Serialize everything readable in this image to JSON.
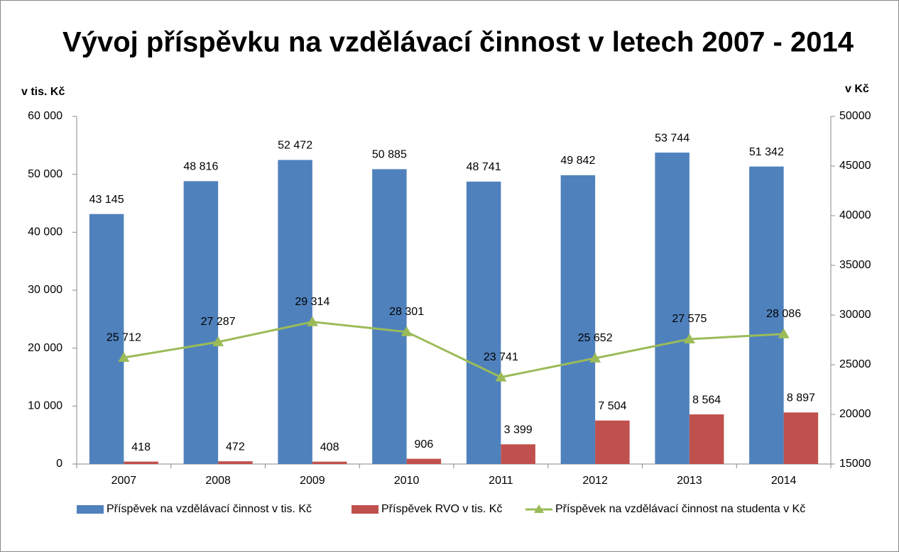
{
  "chart_data": {
    "type": "bar",
    "title": "Vývoj příspěvku na vzdělávací činnost v letech 2007 - 2014",
    "y_label": "v tis. Kč",
    "y2_label": "v Kč",
    "categories": [
      "2007",
      "2008",
      "2009",
      "2010",
      "2011",
      "2012",
      "2013",
      "2014"
    ],
    "series": [
      {
        "name": "Příspěvek na vzdělávací činnost v tis. Kč",
        "type": "bar",
        "color": "#4f81bd",
        "values": [
          43145,
          48816,
          52472,
          50885,
          48741,
          49842,
          53744,
          51342
        ],
        "value_labels": [
          "43 145",
          "48 816",
          "52 472",
          "50 885",
          "48 741",
          "49 842",
          "53 744",
          "51 342"
        ]
      },
      {
        "name": "Příspěvek RVO v tis. Kč",
        "type": "bar",
        "color": "#c0504d",
        "values": [
          418,
          472,
          408,
          906,
          3399,
          7504,
          8564,
          8897
        ],
        "value_labels": [
          "418",
          "472",
          "408",
          "906",
          "3 399",
          "7 504",
          "8 564",
          "8 897"
        ]
      },
      {
        "name": "Příspěvek na vzdělávací činnost na studenta v Kč",
        "type": "line",
        "axis": "y2",
        "color": "#9bbb59",
        "values": [
          25712,
          27287,
          29314,
          28301,
          23741,
          25652,
          27575,
          28086
        ],
        "value_labels": [
          "25 712",
          "27 287",
          "29 314",
          "28 301",
          "23 741",
          "25 652",
          "27 575",
          "28 086"
        ]
      }
    ],
    "ylim": [
      0,
      60000
    ],
    "yticks": [
      0,
      {
        "value": 10000,
        "label": "10 000"
      },
      {
        "value": 20000,
        "label": "20 000"
      },
      {
        "value": 30000,
        "label": "30 000"
      },
      {
        "value": 40000,
        "label": "40 000"
      },
      {
        "value": 50000,
        "label": "50 000"
      },
      {
        "value": 60000,
        "label": "60 000"
      }
    ],
    "y2lim": [
      15000,
      50000
    ],
    "y2ticks": [
      15000,
      20000,
      25000,
      30000,
      35000,
      40000,
      45000,
      50000
    ],
    "grid": false,
    "legend": "bottom"
  }
}
